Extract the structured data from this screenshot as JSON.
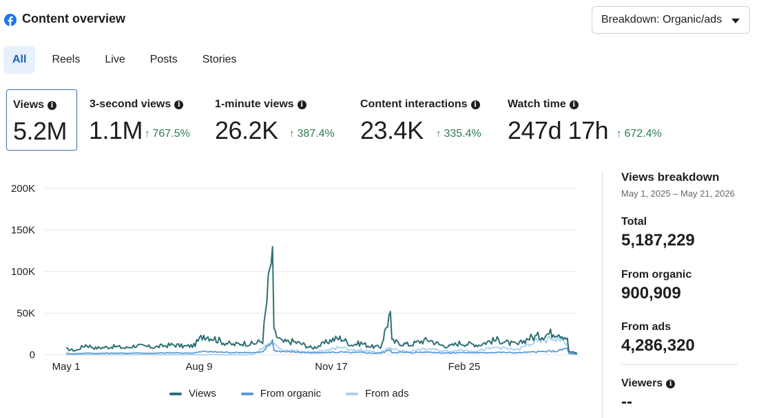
{
  "header": {
    "title": "Content overview",
    "logo_icon": "facebook-icon",
    "breakdown_label": "Breakdown: Organic/ads"
  },
  "tabs": [
    {
      "label": "All",
      "active": true
    },
    {
      "label": "Reels",
      "active": false
    },
    {
      "label": "Live",
      "active": false
    },
    {
      "label": "Posts",
      "active": false
    },
    {
      "label": "Stories",
      "active": false
    }
  ],
  "metrics": [
    {
      "label": "Views",
      "value": "5.2M",
      "change": "",
      "active": true
    },
    {
      "label": "3-second views",
      "value": "1.1M",
      "change": "767.5%",
      "active": false
    },
    {
      "label": "1-minute views",
      "value": "26.2K",
      "change": "387.4%",
      "active": false
    },
    {
      "label": "Content interactions",
      "value": "23.4K",
      "change": "335.4%",
      "active": false
    },
    {
      "label": "Watch time",
      "value": "247d 17h",
      "change": "672.4%",
      "active": false
    }
  ],
  "colors": {
    "views": "#2e6f73",
    "organic": "#5b9bd5",
    "ads": "#a9d0ef",
    "gridline": "#e4e6eb",
    "change_positive": "#2e7d4f"
  },
  "chart_data": {
    "type": "line",
    "x_tick_labels": [
      "May 1",
      "Aug 9",
      "Nov 17",
      "Feb 25"
    ],
    "y_tick_labels": [
      "0",
      "50K",
      "100K",
      "150K",
      "200K"
    ],
    "ylim": [
      0,
      200000
    ],
    "x_range": [
      "May 1, 2025",
      "May 21, 2026"
    ],
    "legend_position": "bottom",
    "grid": true,
    "series": [
      {
        "name": "Views",
        "values_sampled_weekly": [
          7000,
          5000,
          12000,
          8000,
          9000,
          10000,
          8000,
          11000,
          10000,
          9000,
          11000,
          12000,
          10000,
          11000,
          24000,
          20000,
          15000,
          12000,
          14000,
          13000,
          17000,
          130000,
          15000,
          16000,
          13000,
          8000,
          12000,
          18000,
          20000,
          12000,
          14000,
          10000,
          9000,
          52000,
          14000,
          12000,
          16000,
          18000,
          12000,
          10000,
          14000,
          13000,
          12000,
          16000,
          18000,
          14000,
          12000,
          20000,
          22000,
          25000,
          28000,
          20000,
          2000
        ]
      },
      {
        "name": "From organic",
        "values_sampled_weekly": [
          1500,
          1200,
          2000,
          1600,
          1800,
          2000,
          1700,
          2200,
          1900,
          1800,
          2100,
          2300,
          2000,
          2200,
          4000,
          3500,
          3000,
          2600,
          2800,
          2500,
          3000,
          18000,
          4000,
          3500,
          3000,
          2000,
          2500,
          3000,
          3200,
          2500,
          2800,
          2000,
          1800,
          6000,
          3000,
          2500,
          3000,
          3200,
          2500,
          2000,
          2800,
          2500,
          2300,
          2800,
          3000,
          2600,
          2400,
          3000,
          3500,
          4000,
          4500,
          8000,
          500
        ]
      },
      {
        "name": "From ads",
        "values_sampled_weekly": [
          0,
          0,
          0,
          0,
          0,
          0,
          0,
          0,
          0,
          0,
          0,
          0,
          0,
          0,
          0,
          0,
          0,
          0,
          0,
          0,
          8000,
          14000,
          6000,
          5000,
          4000,
          3000,
          4000,
          7000,
          9000,
          5000,
          6000,
          4000,
          3000,
          8000,
          5000,
          4000,
          6000,
          7000,
          5000,
          4000,
          6000,
          5000,
          5000,
          7000,
          9000,
          7000,
          6000,
          12000,
          16000,
          18000,
          20000,
          14000,
          1000
        ]
      }
    ]
  },
  "side_panel": {
    "title": "Views breakdown",
    "date_range": "May 1, 2025 – May 21, 2026",
    "total_label": "Total",
    "total_value": "5,187,229",
    "organic_label": "From organic",
    "organic_value": "900,909",
    "ads_label": "From ads",
    "ads_value": "4,286,320",
    "viewers_label": "Viewers",
    "viewers_value": "--"
  }
}
